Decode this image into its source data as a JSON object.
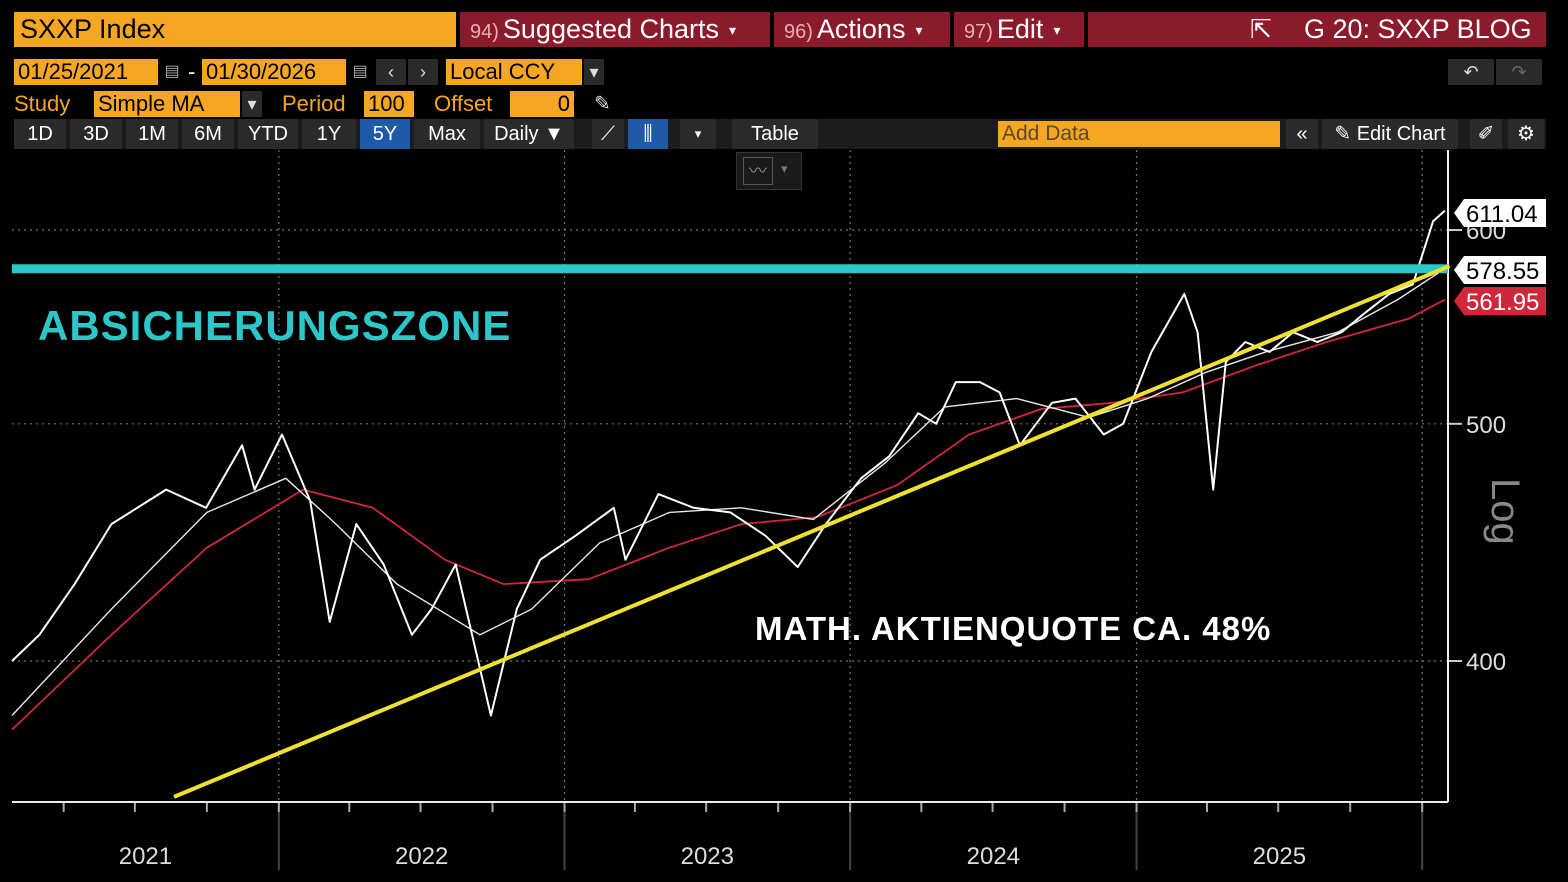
{
  "header": {
    "ticker": "SXXP Index",
    "menus": [
      {
        "num": "94)",
        "label": "Suggested Charts"
      },
      {
        "num": "96)",
        "label": "Actions"
      },
      {
        "num": "97)",
        "label": "Edit"
      }
    ],
    "right_title": "G 20: SXXP BLOG"
  },
  "controls": {
    "start_date": "01/25/2021",
    "dash": "-",
    "end_date": "01/30/2026",
    "currency": "Local CCY",
    "study_label": "Study",
    "study_value": "Simple MA",
    "period_label": "Period",
    "period_value": "100",
    "offset_label": "Offset",
    "offset_value": "0"
  },
  "tabs": [
    "1D",
    "3D",
    "1M",
    "6M",
    "YTD",
    "1Y",
    "5Y",
    "Max"
  ],
  "selected_tab": "5Y",
  "frequency": "Daily",
  "table_label": "Table",
  "add_data_placeholder": "Add Data",
  "edit_chart_label": "Edit Chart",
  "colors": {
    "accent": "#f5a623",
    "menu": "#8b1a2b",
    "zone": "#2ec7c9",
    "trend": "#f0e030",
    "ma_red": "#d0283a",
    "price": "#ffffff"
  },
  "chart_data": {
    "type": "line",
    "scale": "log",
    "scale_label": "Log",
    "ylim": [
      370,
      630
    ],
    "y_ticks": [
      400,
      500,
      600
    ],
    "x_ticks": [
      "2021",
      "2022",
      "2023",
      "2024",
      "2025"
    ],
    "grid": true,
    "last_values": [
      {
        "value": "611.04",
        "series": "price"
      },
      {
        "value": "578.55",
        "series": "ma_white"
      },
      {
        "value": "561.95",
        "series": "ma_red"
      }
    ],
    "series": [
      {
        "key": "price",
        "x": [
          "2021-01-25",
          "2021-03-01",
          "2021-04-15",
          "2021-06-01",
          "2021-08-10",
          "2021-09-30",
          "2021-11-15",
          "2021-12-01",
          "2022-01-05",
          "2022-02-10",
          "2022-03-07",
          "2022-04-10",
          "2022-05-15",
          "2022-06-20",
          "2022-07-15",
          "2022-08-15",
          "2022-09-29",
          "2022-11-01",
          "2022-12-01",
          "2023-01-15",
          "2023-03-05",
          "2023-03-20",
          "2023-05-01",
          "2023-06-15",
          "2023-08-01",
          "2023-09-15",
          "2023-10-26",
          "2023-12-01",
          "2024-01-15",
          "2024-02-20",
          "2024-03-28",
          "2024-04-20",
          "2024-05-15",
          "2024-06-15",
          "2024-07-10",
          "2024-08-05",
          "2024-09-15",
          "2024-10-15",
          "2024-11-20",
          "2024-12-15",
          "2025-01-20",
          "2025-03-03",
          "2025-03-20",
          "2025-04-09",
          "2025-04-25",
          "2025-05-20",
          "2025-06-20",
          "2025-07-20",
          "2025-08-20",
          "2025-09-20",
          "2025-10-20",
          "2025-11-20",
          "2025-12-20",
          "2026-01-15",
          "2026-01-30"
        ],
        "values": [
          400,
          410,
          430,
          455,
          470,
          462,
          490,
          470,
          495,
          465,
          415,
          455,
          438,
          410,
          420,
          438,
          380,
          420,
          440,
          450,
          462,
          440,
          468,
          462,
          460,
          450,
          437,
          455,
          475,
          485,
          505,
          500,
          520,
          520,
          515,
          490,
          510,
          512,
          495,
          500,
          535,
          565,
          545,
          470,
          530,
          540,
          535,
          545,
          540,
          545,
          555,
          565,
          570,
          605,
          611.04
        ]
      },
      {
        "key": "ma_white",
        "x": [
          "2021-01-25",
          "2021-06-01",
          "2021-10-01",
          "2022-01-10",
          "2022-03-15",
          "2022-06-01",
          "2022-09-15",
          "2022-11-20",
          "2023-02-15",
          "2023-05-15",
          "2023-08-15",
          "2023-11-15",
          "2024-02-15",
          "2024-05-01",
          "2024-08-01",
          "2024-11-01",
          "2025-01-15",
          "2025-04-01",
          "2025-06-15",
          "2025-09-15",
          "2025-12-01",
          "2026-01-30"
        ],
        "values": [
          380,
          420,
          460,
          475,
          455,
          430,
          410,
          420,
          447,
          460,
          462,
          457,
          482,
          508,
          512,
          503,
          512,
          525,
          535,
          545,
          562,
          578.55
        ]
      },
      {
        "key": "ma_red",
        "x": [
          "2021-01-25",
          "2021-06-01",
          "2021-10-01",
          "2022-02-01",
          "2022-05-01",
          "2022-08-01",
          "2022-10-15",
          "2023-02-01",
          "2023-05-15",
          "2023-08-15",
          "2023-11-20",
          "2024-03-01",
          "2024-06-01",
          "2024-09-01",
          "2024-12-01",
          "2025-03-01",
          "2025-06-01",
          "2025-09-01",
          "2025-12-15",
          "2026-01-30"
        ],
        "values": [
          375,
          410,
          445,
          470,
          462,
          440,
          430,
          432,
          445,
          455,
          458,
          472,
          495,
          507,
          510,
          515,
          528,
          540,
          552,
          561.95
        ]
      }
    ],
    "zone_level": 578.55,
    "trendline": {
      "from": {
        "x": "2021-08-20",
        "y": 352
      },
      "to": {
        "x": "2026-02-05",
        "y": 580
      }
    },
    "annotations": [
      {
        "text": "ABSICHERUNGSZONE",
        "color": "#2ec7c9"
      },
      {
        "text": "MATH. AKTIENQUOTE CA. 48%",
        "color": "#ffffff"
      }
    ]
  }
}
